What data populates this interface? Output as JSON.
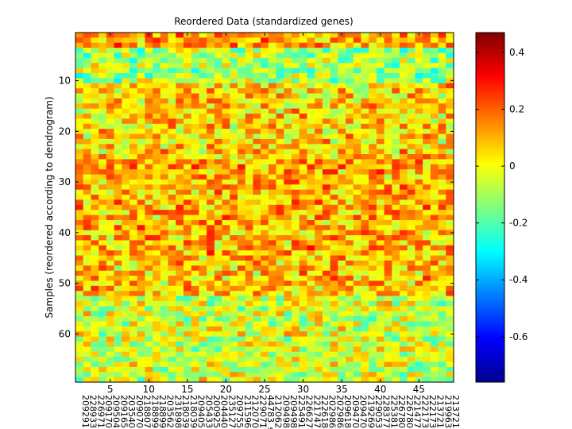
{
  "chart_data": {
    "type": "heatmap",
    "title": "Reordered Data (standardized genes)",
    "xlabel": "",
    "ylabel": "Samples (reordered according to dendrogram)",
    "n_rows": 69,
    "n_cols": 49,
    "x_ticks": [
      5,
      10,
      15,
      20,
      25,
      30,
      35,
      40,
      45
    ],
    "y_ticks": [
      10,
      20,
      30,
      40,
      50,
      60
    ],
    "column_labels": [
      "209291",
      "228933",
      "226971",
      "209170",
      "209504",
      "209165",
      "203540",
      "209070",
      "218807",
      "218899",
      "218899",
      "203562",
      "231898",
      "218039",
      "218039",
      "209405",
      "205433",
      "200925",
      "204440",
      "235127",
      "209755",
      "211596",
      "212070",
      "229071",
      "44783_s",
      "212062",
      "209498",
      "209498",
      "225491",
      "226627",
      "221747",
      "222618",
      "202986",
      "202986",
      "209618",
      "209470",
      "209470",
      "219269",
      "229053",
      "228377",
      "225381",
      "226780",
      "226780",
      "221477",
      "222173",
      "222173",
      "213721",
      "219963",
      "213721"
    ],
    "colorbar": {
      "ticks": [
        0.4,
        0.2,
        0,
        -0.2,
        -0.4,
        -0.6
      ],
      "range": [
        -0.76,
        0.47
      ],
      "colormap": "jet"
    },
    "grid": false,
    "legend": "colorbar-right"
  }
}
